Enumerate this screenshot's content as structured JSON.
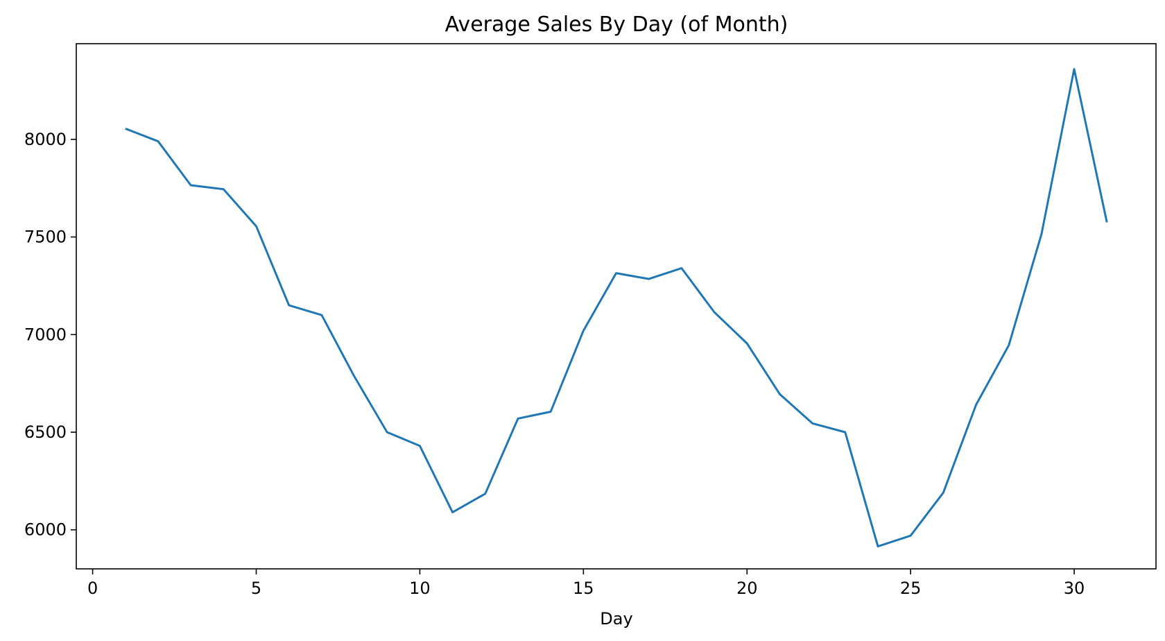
{
  "chart_data": {
    "type": "line",
    "title": "Average Sales By Day (of Month)",
    "xlabel": "Day",
    "ylabel": "",
    "xlim": [
      -0.5,
      32.5
    ],
    "ylim": [
      5800,
      8490
    ],
    "x_ticks": [
      0,
      5,
      10,
      15,
      20,
      25,
      30
    ],
    "y_ticks": [
      6000,
      6500,
      7000,
      7500,
      8000
    ],
    "grid": false,
    "legend": false,
    "line_color": "#1f77b4",
    "series": [
      {
        "x": [
          1,
          2,
          3,
          4,
          5,
          6,
          7,
          8,
          9,
          10,
          11,
          12,
          13,
          14,
          15,
          16,
          17,
          18,
          19,
          20,
          21,
          22,
          23,
          24,
          25,
          26,
          27,
          28,
          29,
          30,
          31
        ],
        "values": [
          8055,
          7990,
          7765,
          7745,
          7555,
          7150,
          7100,
          6785,
          6500,
          6430,
          6090,
          6185,
          6570,
          6605,
          7020,
          7315,
          7285,
          7340,
          7115,
          6955,
          6695,
          6545,
          6500,
          5915,
          5970,
          6190,
          6640,
          6945,
          7515,
          8360,
          7575
        ]
      }
    ]
  }
}
